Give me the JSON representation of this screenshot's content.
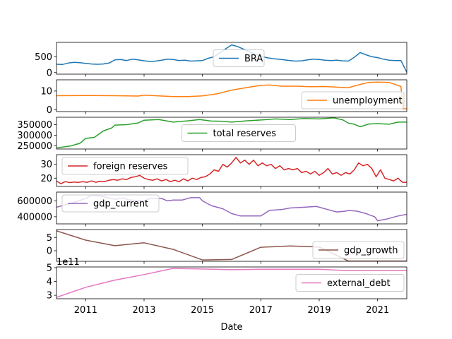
{
  "chart_data": {
    "type": "line",
    "xlabel": "Date",
    "xlim": [
      "2010-01-01",
      "2021-12-31"
    ],
    "x_ticks": [
      "2011",
      "2013",
      "2015",
      "2017",
      "2019",
      "2021"
    ],
    "x_tick_years": [
      2011,
      2013,
      2015,
      2017,
      2019,
      2021
    ],
    "series": [
      {
        "name": "BRA",
        "color": "#1f77b4",
        "ylim": [
          -50,
          950
        ],
        "yticks": [
          0,
          500
        ],
        "ytick_labels": [
          "0",
          "500"
        ],
        "legend": "center",
        "points": [
          [
            2010.0,
            260
          ],
          [
            2010.2,
            255
          ],
          [
            2010.4,
            300
          ],
          [
            2010.6,
            320
          ],
          [
            2010.8,
            310
          ],
          [
            2011.0,
            290
          ],
          [
            2011.2,
            270
          ],
          [
            2011.4,
            260
          ],
          [
            2011.6,
            270
          ],
          [
            2011.8,
            300
          ],
          [
            2012.0,
            400
          ],
          [
            2012.2,
            410
          ],
          [
            2012.4,
            380
          ],
          [
            2012.6,
            420
          ],
          [
            2012.8,
            400
          ],
          [
            2013.0,
            370
          ],
          [
            2013.2,
            350
          ],
          [
            2013.4,
            360
          ],
          [
            2013.6,
            390
          ],
          [
            2013.8,
            420
          ],
          [
            2014.0,
            410
          ],
          [
            2014.2,
            380
          ],
          [
            2014.4,
            390
          ],
          [
            2014.6,
            360
          ],
          [
            2014.8,
            370
          ],
          [
            2015.0,
            380
          ],
          [
            2015.2,
            450
          ],
          [
            2015.4,
            500
          ],
          [
            2015.6,
            620
          ],
          [
            2015.8,
            750
          ],
          [
            2016.0,
            870
          ],
          [
            2016.2,
            820
          ],
          [
            2016.4,
            740
          ],
          [
            2016.6,
            660
          ],
          [
            2016.8,
            580
          ],
          [
            2017.0,
            520
          ],
          [
            2017.2,
            470
          ],
          [
            2017.4,
            440
          ],
          [
            2017.6,
            420
          ],
          [
            2017.8,
            400
          ],
          [
            2018.0,
            380
          ],
          [
            2018.2,
            360
          ],
          [
            2018.4,
            370
          ],
          [
            2018.6,
            400
          ],
          [
            2018.8,
            420
          ],
          [
            2019.0,
            410
          ],
          [
            2019.2,
            390
          ],
          [
            2019.4,
            380
          ],
          [
            2019.6,
            390
          ],
          [
            2019.8,
            370
          ],
          [
            2020.0,
            360
          ],
          [
            2020.2,
            480
          ],
          [
            2020.4,
            630
          ],
          [
            2020.6,
            560
          ],
          [
            2020.8,
            500
          ],
          [
            2021.0,
            470
          ],
          [
            2021.2,
            420
          ],
          [
            2021.4,
            390
          ],
          [
            2021.6,
            380
          ],
          [
            2021.8,
            380
          ],
          [
            2022.0,
            10
          ]
        ]
      },
      {
        "name": "unemployment",
        "color": "#ff7f0e",
        "ylim": [
          -1,
          16
        ],
        "yticks": [
          0,
          10
        ],
        "ytick_labels": [
          "0",
          "10"
        ],
        "legend": "lower-right",
        "points": [
          [
            2010.0,
            7.5
          ],
          [
            2011.0,
            7.6
          ],
          [
            2012.0,
            7.5
          ],
          [
            2012.8,
            7.3
          ],
          [
            2013.0,
            7.8
          ],
          [
            2013.5,
            7.4
          ],
          [
            2014.0,
            7.0
          ],
          [
            2014.5,
            7.0
          ],
          [
            2015.0,
            7.4
          ],
          [
            2015.5,
            8.5
          ],
          [
            2016.0,
            10.5
          ],
          [
            2016.5,
            11.8
          ],
          [
            2017.0,
            13.0
          ],
          [
            2017.3,
            13.2
          ],
          [
            2017.7,
            12.6
          ],
          [
            2018.2,
            12.6
          ],
          [
            2018.7,
            12.3
          ],
          [
            2019.2,
            12.4
          ],
          [
            2019.7,
            12.0
          ],
          [
            2020.0,
            11.8
          ],
          [
            2020.4,
            13.5
          ],
          [
            2020.7,
            14.6
          ],
          [
            2021.0,
            14.8
          ],
          [
            2021.4,
            14.6
          ],
          [
            2021.8,
            12.4
          ],
          [
            2021.87,
            0.5
          ],
          [
            2022.0,
            0.5
          ]
        ]
      },
      {
        "name": "total reserves",
        "color": "#2ca02c",
        "ylim": [
          235000,
          385000
        ],
        "yticks": [
          250000,
          300000,
          350000
        ],
        "ytick_labels": [
          "250000",
          "300000",
          "350000"
        ],
        "legend": "center",
        "points": [
          [
            2010.0,
            240000
          ],
          [
            2010.5,
            250000
          ],
          [
            2010.8,
            262000
          ],
          [
            2011.0,
            285000
          ],
          [
            2011.3,
            290000
          ],
          [
            2011.6,
            320000
          ],
          [
            2011.9,
            335000
          ],
          [
            2012.0,
            348000
          ],
          [
            2012.4,
            350000
          ],
          [
            2012.8,
            358000
          ],
          [
            2013.0,
            371000
          ],
          [
            2013.5,
            374000
          ],
          [
            2014.0,
            362000
          ],
          [
            2014.5,
            368000
          ],
          [
            2014.9,
            374000
          ],
          [
            2015.3,
            367000
          ],
          [
            2015.7,
            366000
          ],
          [
            2016.0,
            362000
          ],
          [
            2016.5,
            368000
          ],
          [
            2017.0,
            372000
          ],
          [
            2017.5,
            377000
          ],
          [
            2018.0,
            374000
          ],
          [
            2018.5,
            379000
          ],
          [
            2019.0,
            377000
          ],
          [
            2019.5,
            382000
          ],
          [
            2019.8,
            373000
          ],
          [
            2020.0,
            357000
          ],
          [
            2020.2,
            352000
          ],
          [
            2020.4,
            340000
          ],
          [
            2020.7,
            353000
          ],
          [
            2021.0,
            355000
          ],
          [
            2021.4,
            352000
          ],
          [
            2021.7,
            362000
          ],
          [
            2022.0,
            362000
          ]
        ]
      },
      {
        "name": "foreign reserves",
        "color": "#d62728",
        "ylim": [
          14,
          37
        ],
        "yticks": [
          20,
          30
        ],
        "ytick_labels": [
          "20",
          "30"
        ],
        "legend": "upper-left",
        "points": [
          [
            2010.0,
            18
          ],
          [
            2010.15,
            16
          ],
          [
            2010.3,
            17.5
          ],
          [
            2010.45,
            16.8
          ],
          [
            2010.6,
            17.2
          ],
          [
            2010.75,
            16.9
          ],
          [
            2010.9,
            17.5
          ],
          [
            2011.05,
            17
          ],
          [
            2011.2,
            18
          ],
          [
            2011.35,
            17
          ],
          [
            2011.5,
            17.8
          ],
          [
            2011.65,
            17.5
          ],
          [
            2011.8,
            18.5
          ],
          [
            2011.95,
            19
          ],
          [
            2012.1,
            18.5
          ],
          [
            2012.25,
            19.5
          ],
          [
            2012.4,
            19
          ],
          [
            2012.55,
            20.5
          ],
          [
            2012.7,
            21
          ],
          [
            2012.85,
            22
          ],
          [
            2013.0,
            20
          ],
          [
            2013.15,
            19
          ],
          [
            2013.3,
            18.5
          ],
          [
            2013.45,
            19.5
          ],
          [
            2013.6,
            18
          ],
          [
            2013.75,
            19
          ],
          [
            2013.9,
            17.5
          ],
          [
            2014.05,
            18.5
          ],
          [
            2014.2,
            17.5
          ],
          [
            2014.35,
            19.5
          ],
          [
            2014.5,
            18
          ],
          [
            2014.65,
            20
          ],
          [
            2014.8,
            19
          ],
          [
            2014.95,
            20.5
          ],
          [
            2015.1,
            21
          ],
          [
            2015.25,
            23
          ],
          [
            2015.4,
            26
          ],
          [
            2015.55,
            25
          ],
          [
            2015.7,
            30
          ],
          [
            2015.85,
            28
          ],
          [
            2016.0,
            31
          ],
          [
            2016.15,
            35
          ],
          [
            2016.3,
            31
          ],
          [
            2016.45,
            33
          ],
          [
            2016.6,
            30
          ],
          [
            2016.75,
            33
          ],
          [
            2016.9,
            29
          ],
          [
            2017.05,
            31
          ],
          [
            2017.2,
            29
          ],
          [
            2017.35,
            30
          ],
          [
            2017.5,
            27
          ],
          [
            2017.65,
            29
          ],
          [
            2017.8,
            26
          ],
          [
            2017.95,
            27
          ],
          [
            2018.1,
            26
          ],
          [
            2018.25,
            27
          ],
          [
            2018.4,
            24
          ],
          [
            2018.55,
            25
          ],
          [
            2018.7,
            23
          ],
          [
            2018.85,
            25
          ],
          [
            2019.0,
            22
          ],
          [
            2019.15,
            24
          ],
          [
            2019.3,
            27
          ],
          [
            2019.45,
            23
          ],
          [
            2019.6,
            24
          ],
          [
            2019.75,
            22
          ],
          [
            2019.9,
            24
          ],
          [
            2020.05,
            23
          ],
          [
            2020.2,
            26
          ],
          [
            2020.35,
            31
          ],
          [
            2020.5,
            29
          ],
          [
            2020.65,
            30
          ],
          [
            2020.8,
            27
          ],
          [
            2020.95,
            21
          ],
          [
            2021.1,
            26
          ],
          [
            2021.25,
            20
          ],
          [
            2021.4,
            19
          ],
          [
            2021.55,
            18
          ],
          [
            2021.7,
            20
          ],
          [
            2021.85,
            17
          ],
          [
            2022.0,
            17
          ]
        ]
      },
      {
        "name": "gdp_current",
        "color": "#9467bd",
        "ylim": [
          310000,
          710000
        ],
        "yticks": [
          400000,
          600000
        ],
        "ytick_labels": [
          "400000",
          "600000"
        ],
        "legend": "upper-left",
        "points": [
          [
            2010.0,
            520000
          ],
          [
            2010.6,
            580000
          ],
          [
            2011.0,
            630000
          ],
          [
            2011.2,
            670000
          ],
          [
            2011.5,
            660000
          ],
          [
            2012.0,
            620000
          ],
          [
            2012.3,
            635000
          ],
          [
            2012.5,
            610000
          ],
          [
            2013.0,
            600000
          ],
          [
            2013.2,
            630000
          ],
          [
            2013.6,
            630000
          ],
          [
            2013.8,
            600000
          ],
          [
            2014.0,
            610000
          ],
          [
            2014.3,
            610000
          ],
          [
            2014.6,
            640000
          ],
          [
            2014.9,
            640000
          ],
          [
            2015.0,
            600000
          ],
          [
            2015.3,
            540000
          ],
          [
            2015.7,
            500000
          ],
          [
            2016.0,
            440000
          ],
          [
            2016.3,
            410000
          ],
          [
            2016.8,
            410000
          ],
          [
            2017.0,
            410000
          ],
          [
            2017.3,
            480000
          ],
          [
            2017.7,
            490000
          ],
          [
            2018.0,
            510000
          ],
          [
            2018.5,
            520000
          ],
          [
            2018.9,
            530000
          ],
          [
            2019.0,
            520000
          ],
          [
            2019.3,
            490000
          ],
          [
            2019.6,
            460000
          ],
          [
            2019.9,
            470000
          ],
          [
            2020.0,
            480000
          ],
          [
            2020.3,
            470000
          ],
          [
            2020.6,
            440000
          ],
          [
            2020.9,
            400000
          ],
          [
            2021.0,
            350000
          ],
          [
            2021.3,
            370000
          ],
          [
            2021.7,
            410000
          ],
          [
            2022.0,
            430000
          ]
        ]
      },
      {
        "name": "gdp_growth",
        "color": "#8c564b",
        "ylim": [
          -4,
          8
        ],
        "yticks": [
          0,
          5
        ],
        "ytick_labels": [
          "0",
          "5"
        ],
        "legend": "lower-right",
        "points": [
          [
            2010.0,
            7.5
          ],
          [
            2011.0,
            4.0
          ],
          [
            2012.0,
            1.9
          ],
          [
            2013.0,
            3.0
          ],
          [
            2014.0,
            0.5
          ],
          [
            2015.0,
            -3.5
          ],
          [
            2016.0,
            -3.3
          ],
          [
            2017.0,
            1.3
          ],
          [
            2018.0,
            1.8
          ],
          [
            2019.0,
            1.4
          ],
          [
            2020.0,
            -3.9
          ],
          [
            2021.0,
            -3.9
          ],
          [
            2022.0,
            -3.9
          ]
        ]
      },
      {
        "name": "external_debt",
        "color": "#e377c2",
        "ylim": [
          2.75,
          5.05
        ],
        "yticks": [
          3,
          4,
          5
        ],
        "ytick_labels": [
          "3",
          "4",
          "5"
        ],
        "offset_label": "1e11",
        "legend": "center-right",
        "points": [
          [
            2010.0,
            2.85
          ],
          [
            2011.0,
            3.58
          ],
          [
            2012.0,
            4.1
          ],
          [
            2013.0,
            4.5
          ],
          [
            2014.0,
            4.95
          ],
          [
            2015.0,
            4.9
          ],
          [
            2016.0,
            4.85
          ],
          [
            2017.0,
            4.88
          ],
          [
            2018.0,
            4.88
          ],
          [
            2019.0,
            4.88
          ],
          [
            2020.0,
            4.78
          ],
          [
            2021.0,
            4.78
          ],
          [
            2022.0,
            4.78
          ]
        ]
      }
    ]
  }
}
